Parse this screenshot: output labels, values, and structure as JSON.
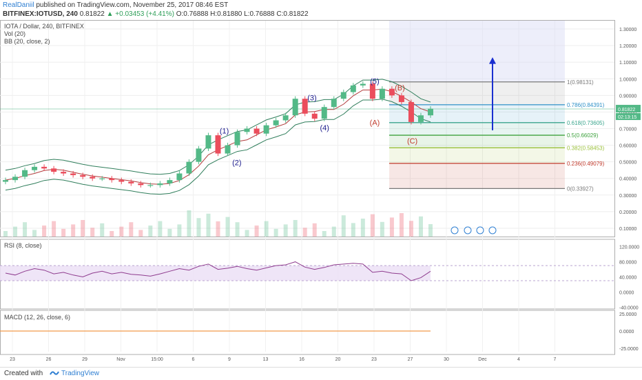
{
  "header": {
    "user": "RealDaniil",
    "published": "published on TradingView.com, November 25, 2017 08:46 EST",
    "symbol": "BITFINEX:IOTUSD, 240",
    "last": "0.81822",
    "change": "▲ +0.03453 (+4.41%)",
    "ohlc": "O:0.76888 H:0.81880 L:0.76888 C:0.81822"
  },
  "legend": {
    "title": "IOTA / Dollar, 240, BITFINEX",
    "vol": "Vol (20)",
    "bb": "BB (20, close, 2)",
    "rsi": "RSI (8, close)",
    "macd": "MACD (12, 26, close, 6)"
  },
  "footer": {
    "created": "Created with",
    "brand": "TradingView"
  },
  "chart_data": {
    "type": "candlestick",
    "price_axis": [
      "1.30000",
      "1.20000",
      "1.10000",
      "1.00000",
      "0.90000",
      "0.80000",
      "0.70000",
      "0.60000",
      "0.50000",
      "0.40000",
      "0.30000",
      "0.20000",
      "0.10000"
    ],
    "ylim": [
      0.05,
      1.35
    ],
    "last_price": "0.81822",
    "countdown": "02:13:15",
    "x_ticks": [
      "23",
      "26",
      "29",
      "Nov",
      "15:00",
      "6",
      "9",
      "13",
      "16",
      "20",
      "23",
      "27",
      "30",
      "Dec",
      "4",
      "7"
    ],
    "close_series": [
      0.39,
      0.41,
      0.45,
      0.47,
      0.46,
      0.44,
      0.43,
      0.42,
      0.41,
      0.4,
      0.4,
      0.39,
      0.38,
      0.37,
      0.36,
      0.36,
      0.37,
      0.39,
      0.43,
      0.5,
      0.58,
      0.66,
      0.55,
      0.6,
      0.68,
      0.7,
      0.67,
      0.72,
      0.75,
      0.78,
      0.88,
      0.79,
      0.76,
      0.83,
      0.88,
      0.92,
      0.96,
      0.97,
      0.88,
      0.94,
      0.9,
      0.86,
      0.74,
      0.78,
      0.82
    ],
    "waves": [
      {
        "label": "(1)",
        "date": "Nov 9",
        "price": 0.67
      },
      {
        "label": "(2)",
        "date": "Nov 10",
        "price": 0.48
      },
      {
        "label": "(3)",
        "date": "Nov 16",
        "price": 0.87
      },
      {
        "label": "(4)",
        "date": "Nov 17",
        "price": 0.69
      },
      {
        "label": "(5)",
        "date": "Nov 21",
        "price": 0.97
      },
      {
        "label": "(A)",
        "date": "Nov 21",
        "price": 0.72
      },
      {
        "label": "(B)",
        "date": "Nov 23",
        "price": 0.93
      },
      {
        "label": "(C)",
        "date": "Nov 24",
        "price": 0.61
      }
    ],
    "fibonacci": [
      {
        "ratio": "1",
        "price": "0.98131",
        "color": "#787878"
      },
      {
        "ratio": "0.786",
        "price": "0.84391",
        "color": "#2f91c8"
      },
      {
        "ratio": "0.618",
        "price": "0.73605",
        "color": "#3aa58d"
      },
      {
        "ratio": "0.5",
        "price": "0.66029",
        "color": "#3ea23e"
      },
      {
        "ratio": "0.382",
        "price": "0.58453",
        "color": "#9bc13b"
      },
      {
        "ratio": "0.236",
        "price": "0.49079",
        "color": "#c0392b"
      },
      {
        "ratio": "0",
        "price": "0.33927",
        "color": "#787878"
      }
    ],
    "rsi_axis": [
      "120.0000",
      "80.0000",
      "40.0000",
      "0.0000",
      "-40.0000"
    ],
    "rsi_ylim": [
      -45,
      125
    ],
    "rsi_band": [
      30,
      70
    ],
    "rsi_series": [
      50,
      45,
      55,
      62,
      58,
      48,
      52,
      45,
      40,
      50,
      55,
      48,
      52,
      47,
      45,
      42,
      48,
      55,
      62,
      58,
      68,
      74,
      60,
      63,
      68,
      62,
      58,
      64,
      70,
      72,
      80,
      66,
      60,
      65,
      72,
      74,
      76,
      74,
      52,
      55,
      50,
      48,
      30,
      38,
      55
    ],
    "macd_axis": [
      "25.0000",
      "0.0000",
      "-25.0000"
    ],
    "macd_ylim": [
      -30,
      30
    ],
    "colors": {
      "up": "#53b987",
      "down": "#eb4d5c",
      "bb": "#2e7d5a",
      "bb_basis": "#b13b3b",
      "rsi": "#8e3b8e",
      "rsi_band": "#ece0f6",
      "macd": "#f29a4a",
      "arrow": "#1a2fd0",
      "waves": "#1a1a8c",
      "correction": "#c0392b"
    }
  }
}
